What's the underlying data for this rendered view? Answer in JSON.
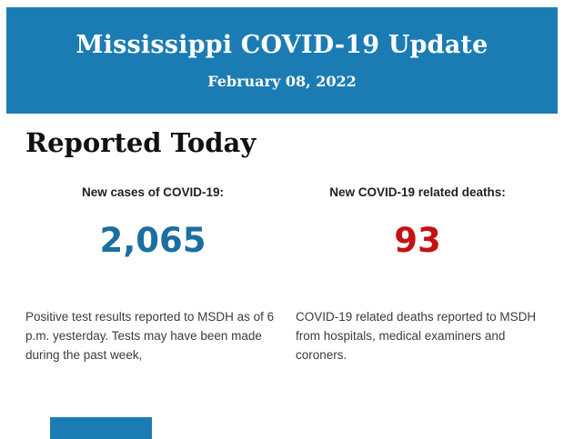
{
  "banner": {
    "title": "Mississippi COVID-19 Update",
    "date": "February 08, 2022",
    "background": "#1b7cb4"
  },
  "section": {
    "heading": "Reported Today"
  },
  "stats": {
    "cases": {
      "label": "New cases of COVID-19:",
      "value": "2,065",
      "value_color": "#1b6fa0",
      "description": "Positive test results reported to MSDH as of 6 p.m. yesterday. Tests may have been made during the past week,"
    },
    "deaths": {
      "label": "New COVID-19 related deaths:",
      "value": "93",
      "value_color": "#c51111",
      "description": "COVID-19 related deaths reported to MSDH from hospitals, medical examiners and coroners."
    }
  },
  "footer": {
    "next_section_banner_color": "#1b7cb4"
  }
}
